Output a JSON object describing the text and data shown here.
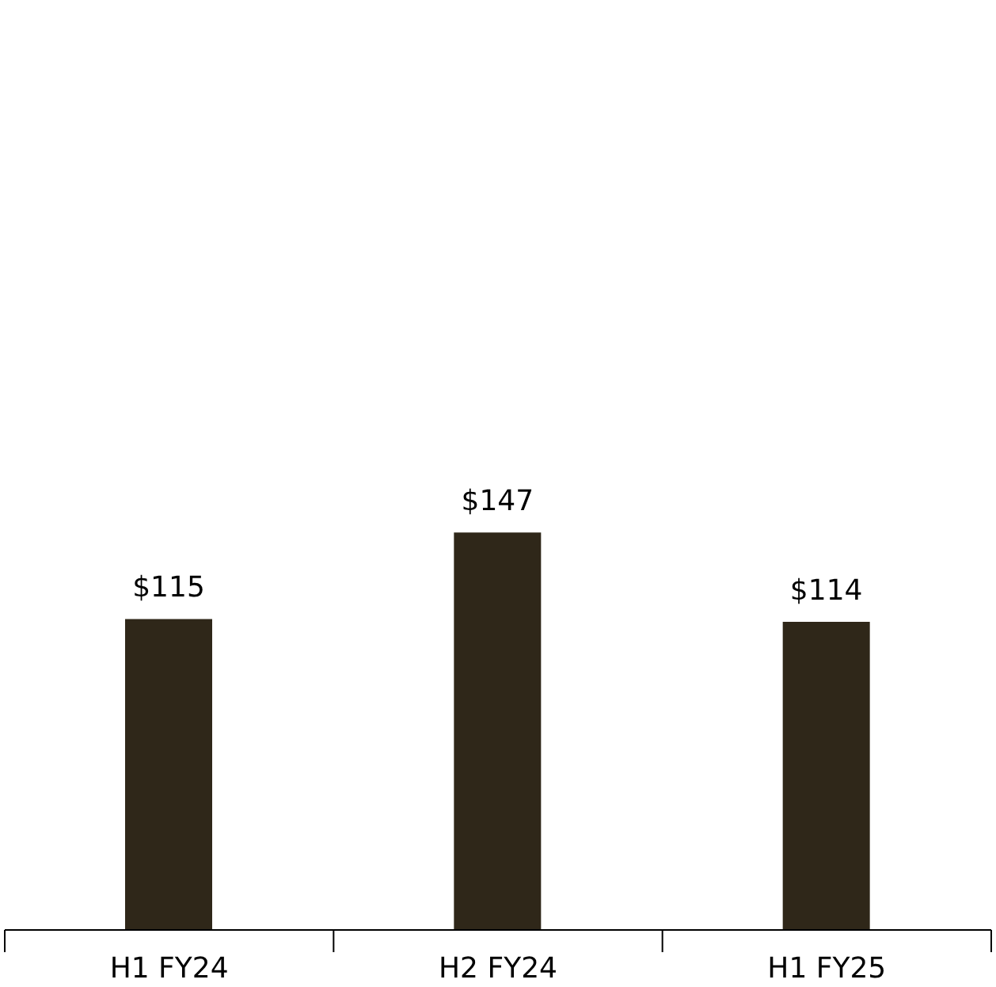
{
  "chart_data": {
    "type": "bar",
    "categories": [
      "H1 FY24",
      "H2 FY24",
      "H1 FY25"
    ],
    "values": [
      115,
      147,
      114
    ],
    "value_labels": [
      "$115",
      "$147",
      "$114"
    ],
    "color": "#2f2719"
  }
}
